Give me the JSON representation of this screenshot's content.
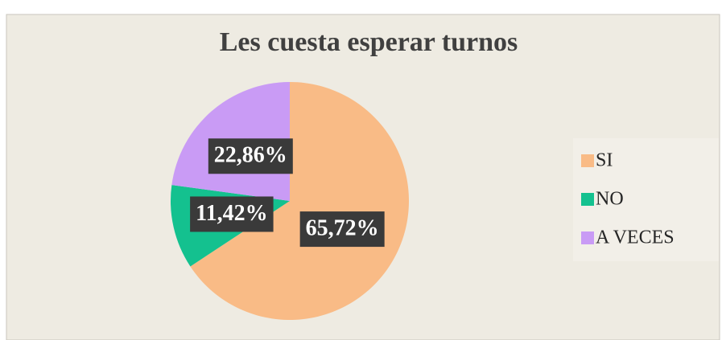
{
  "chart_data": {
    "type": "pie",
    "title": "Les cuesta esperar turnos",
    "categories": [
      "SI",
      "NO",
      "A VECES"
    ],
    "values": [
      65.72,
      11.42,
      22.86
    ],
    "value_labels": [
      "65,72%",
      "11,42%",
      "22,86%"
    ],
    "colors": [
      "#f9bb86",
      "#14c18f",
      "#c99bf5"
    ],
    "legend": "right"
  }
}
